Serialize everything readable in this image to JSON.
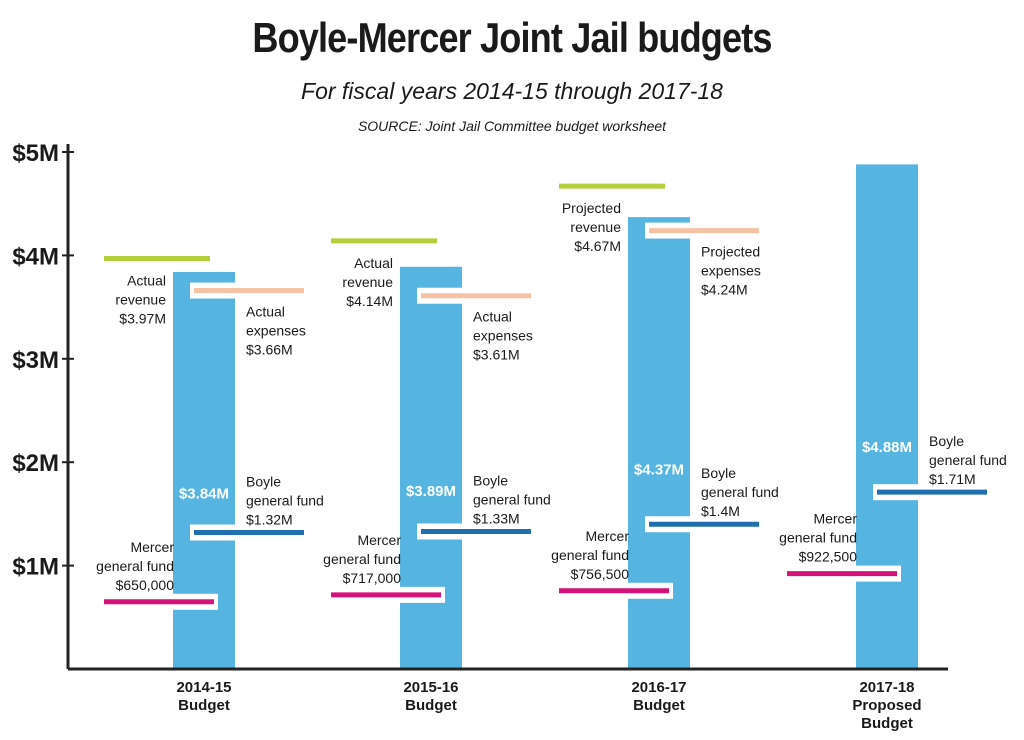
{
  "title": "Boyle-Mercer Joint Jail budgets",
  "subtitle": "For fiscal years 2014-15 through 2017-18",
  "source": "SOURCE: Joint Jail Committee budget worksheet",
  "colors": {
    "bar": "#56b4e0",
    "revenue": "#b5cf3c",
    "expenses": "#f5c3a3",
    "boyle": "#1f6faf",
    "mercer": "#d5127a",
    "axis": "#222222"
  },
  "chart_data": {
    "type": "bar",
    "ylim": [
      0,
      5000000
    ],
    "yticks": [
      {
        "value": 1000000,
        "label": "$1M"
      },
      {
        "value": 2000000,
        "label": "$2M"
      },
      {
        "value": 3000000,
        "label": "$3M"
      },
      {
        "value": 4000000,
        "label": "$4M"
      },
      {
        "value": 5000000,
        "label": "$5M"
      }
    ],
    "categories": [
      {
        "line1": "2014-15",
        "line2": "Budget",
        "line3": ""
      },
      {
        "line1": "2015-16",
        "line2": "Budget",
        "line3": ""
      },
      {
        "line1": "2016-17",
        "line2": "Budget",
        "line3": ""
      },
      {
        "line1": "2017-18",
        "line2": "Proposed",
        "line3": "Budget"
      }
    ],
    "budget": [
      {
        "value": 3840000,
        "label": "$3.84M"
      },
      {
        "value": 3890000,
        "label": "$3.89M"
      },
      {
        "value": 4370000,
        "label": "$4.37M"
      },
      {
        "value": 4880000,
        "label": "$4.88M"
      }
    ],
    "revenue": [
      {
        "value": 3970000,
        "lines": [
          "Actual",
          "revenue",
          "$3.97M"
        ]
      },
      {
        "value": 4140000,
        "lines": [
          "Actual",
          "revenue",
          "$4.14M"
        ]
      },
      {
        "value": 4670000,
        "lines": [
          "Projected",
          "revenue",
          "$4.67M"
        ]
      }
    ],
    "expenses": [
      {
        "value": 3660000,
        "lines": [
          "Actual",
          "expenses",
          "$3.66M"
        ]
      },
      {
        "value": 3610000,
        "lines": [
          "Actual",
          "expenses",
          "$3.61M"
        ]
      },
      {
        "value": 4240000,
        "lines": [
          "Projected",
          "expenses",
          "$4.24M"
        ]
      }
    ],
    "boyle": [
      {
        "value": 1320000,
        "lines": [
          "Boyle",
          "general fund",
          "$1.32M"
        ]
      },
      {
        "value": 1330000,
        "lines": [
          "Boyle",
          "general fund",
          "$1.33M"
        ]
      },
      {
        "value": 1400000,
        "lines": [
          "Boyle",
          "general fund",
          "$1.4M"
        ]
      },
      {
        "value": 1710000,
        "lines": [
          "Boyle",
          "general fund",
          "$1.71M"
        ]
      }
    ],
    "mercer": [
      {
        "value": 650000,
        "lines": [
          "Mercer",
          "general fund",
          "$650,000"
        ]
      },
      {
        "value": 717000,
        "lines": [
          "Mercer",
          "general fund",
          "$717,000"
        ]
      },
      {
        "value": 756500,
        "lines": [
          "Mercer",
          "general fund",
          "$756,500"
        ]
      },
      {
        "value": 922500,
        "lines": [
          "Mercer",
          "general fund",
          "$922,500"
        ]
      }
    ]
  }
}
